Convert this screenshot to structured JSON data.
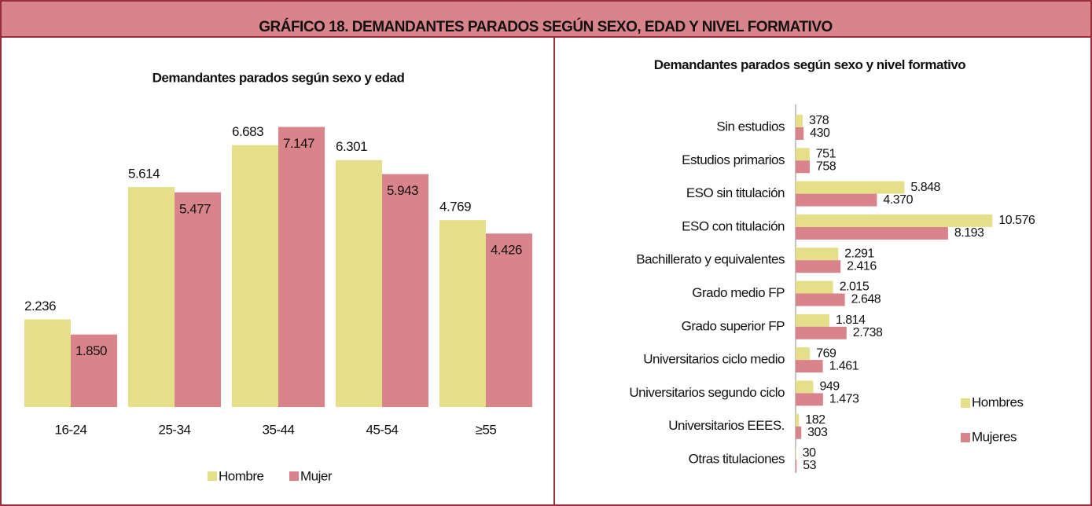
{
  "header": {
    "title": "GRÁFICO 18. DEMANDANTES PARADOS SEGÚN SEXO, EDAD Y NIVEL FORMATIVO"
  },
  "chart_data": [
    {
      "type": "bar",
      "title": "Demandantes parados según sexo y edad",
      "categories": [
        "16-24",
        "25-34",
        "35-44",
        "45-54",
        "≥55"
      ],
      "series": [
        {
          "name": "Hombre",
          "color": "#e6df8a",
          "values": [
            2236,
            5614,
            6683,
            6301,
            4769
          ],
          "value_labels": [
            "2.236",
            "5.614",
            "6.683",
            "6.301",
            "4.769"
          ]
        },
        {
          "name": "Mujer",
          "color": "#d9838b",
          "values": [
            1850,
            5477,
            7147,
            5943,
            4426
          ],
          "value_labels": [
            "1.850",
            "5.477",
            "7.147",
            "5.943",
            "4.426"
          ]
        }
      ],
      "ylim": [
        0,
        8000
      ],
      "legend": "bottom"
    },
    {
      "type": "barh",
      "title": "Demandantes parados según sexo y nivel formativo",
      "categories": [
        "Sin estudios",
        "Estudios primarios",
        "ESO sin titulación",
        "ESO con titulación",
        "Bachillerato y equivalentes",
        "Grado medio FP",
        "Grado superior FP",
        "Universitarios ciclo medio",
        "Universitarios segundo ciclo",
        "Universitarios EEES.",
        "Otras titulaciones"
      ],
      "series": [
        {
          "name": "Hombres",
          "color": "#e6df8a",
          "values": [
            378,
            751,
            5848,
            10576,
            2291,
            2015,
            1814,
            769,
            949,
            182,
            30
          ],
          "value_labels": [
            "378",
            "751",
            "5.848",
            "10.576",
            "2.291",
            "2.015",
            "1.814",
            "769",
            "949",
            "182",
            "30"
          ]
        },
        {
          "name": "Mujeres",
          "color": "#d9838b",
          "values": [
            430,
            758,
            4370,
            8193,
            2416,
            2648,
            2738,
            1461,
            1473,
            303,
            53
          ],
          "value_labels": [
            "430",
            "758",
            "4.370",
            "8.193",
            "2.416",
            "2.648",
            "2.738",
            "1.461",
            "1.473",
            "303",
            "53"
          ]
        }
      ],
      "xlim": [
        0,
        12000
      ],
      "legend": "right"
    }
  ]
}
